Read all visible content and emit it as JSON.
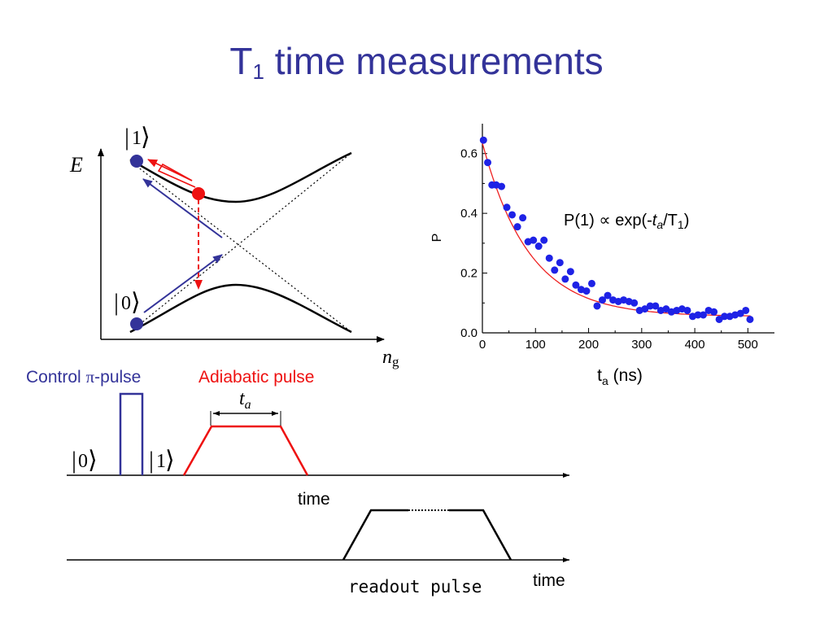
{
  "slide": {
    "title_main": "T",
    "title_sub": "1",
    "title_rest": " time measurements"
  },
  "energy_diagram": {
    "y_axis_label": "E",
    "x_axis_label_main": "n",
    "x_axis_label_sub": "g",
    "state_one_label": "1",
    "state_zero_label": "0"
  },
  "pulse_sequence": {
    "control_label_prefix": "Control ",
    "control_label_symbol": "π",
    "control_label_suffix": "-pulse",
    "adiabatic_label": "Adiabatic pulse",
    "t_a_main": "t",
    "t_a_sub": "a",
    "ket_zero": "0",
    "ket_one": "1",
    "time_label_1": "time",
    "time_label_2": "time",
    "readout_label": "readout pulse"
  },
  "colors": {
    "title": "#333399",
    "control": "#333399",
    "adiabatic": "#ee1111",
    "data_points": "#1e22e6",
    "fit_curve": "#ee2222"
  },
  "chart_data": {
    "type": "scatter",
    "title": "",
    "xlabel_main": "t",
    "xlabel_sub": "a",
    "xlabel_unit": " (ns)",
    "ylabel": "P",
    "xlim": [
      0,
      550
    ],
    "ylim": [
      0,
      0.7
    ],
    "xticks": [
      0,
      100,
      200,
      300,
      400,
      500
    ],
    "yticks": [
      0.0,
      0.2,
      0.4,
      0.6
    ],
    "xtick_labels": [
      "0",
      "100",
      "200",
      "300",
      "400",
      "500"
    ],
    "ytick_labels": [
      "0.0",
      "0.2",
      "0.4",
      "0.6"
    ],
    "annotation": {
      "prefix": "P(1) ",
      "symbol": "∝",
      "mid": " exp(-",
      "var_main": "t",
      "var_sub": "a",
      "slash": "/T",
      "t_sub": "1",
      "close": ")"
    },
    "series": [
      {
        "points": [
          [
            2,
            0.645
          ],
          [
            10,
            0.57
          ],
          [
            18,
            0.495
          ],
          [
            26,
            0.495
          ],
          [
            36,
            0.49
          ],
          [
            46,
            0.42
          ],
          [
            56,
            0.395
          ],
          [
            66,
            0.355
          ],
          [
            76,
            0.385
          ],
          [
            86,
            0.305
          ],
          [
            96,
            0.31
          ],
          [
            106,
            0.29
          ],
          [
            116,
            0.31
          ],
          [
            126,
            0.25
          ],
          [
            136,
            0.21
          ],
          [
            146,
            0.235
          ],
          [
            156,
            0.18
          ],
          [
            166,
            0.205
          ],
          [
            176,
            0.16
          ],
          [
            186,
            0.145
          ],
          [
            196,
            0.14
          ],
          [
            206,
            0.165
          ],
          [
            216,
            0.09
          ],
          [
            226,
            0.11
          ],
          [
            236,
            0.125
          ],
          [
            246,
            0.11
          ],
          [
            256,
            0.105
          ],
          [
            266,
            0.11
          ],
          [
            276,
            0.105
          ],
          [
            286,
            0.1
          ],
          [
            296,
            0.075
          ],
          [
            306,
            0.08
          ],
          [
            316,
            0.09
          ],
          [
            326,
            0.09
          ],
          [
            336,
            0.075
          ],
          [
            346,
            0.08
          ],
          [
            356,
            0.07
          ],
          [
            366,
            0.075
          ],
          [
            376,
            0.08
          ],
          [
            386,
            0.075
          ],
          [
            396,
            0.055
          ],
          [
            406,
            0.06
          ],
          [
            416,
            0.06
          ],
          [
            426,
            0.075
          ],
          [
            436,
            0.07
          ],
          [
            446,
            0.045
          ],
          [
            456,
            0.055
          ],
          [
            466,
            0.055
          ],
          [
            476,
            0.06
          ],
          [
            486,
            0.065
          ],
          [
            496,
            0.075
          ],
          [
            504,
            0.045
          ]
        ]
      }
    ],
    "fit": {
      "type": "exponential",
      "amplitude": 0.58,
      "tau": 88,
      "offset": 0.055
    }
  }
}
